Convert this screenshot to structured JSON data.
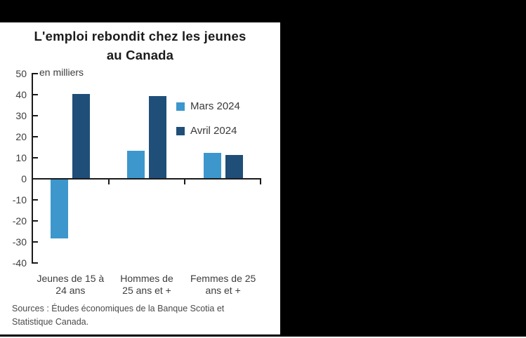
{
  "window": {
    "background_color": "#000000",
    "panel_background": "#ffffff"
  },
  "header": {
    "title_lines": [
      "L'emploi rebondit chez les jeunes",
      "au Canada"
    ],
    "title_full": "L'emploi rebondit chez les jeunes au Canada"
  },
  "chart_data": {
    "type": "bar",
    "title": "L'emploi rebondit chez les jeunes au Canada",
    "ylabel": "en milliers",
    "xlabel": "",
    "categories": [
      "Jeunes de 15 à 24 ans",
      "Hommes de 25 ans et +",
      "Femmes de 25 ans et +"
    ],
    "category_label_lines": [
      [
        "Jeunes de 15 à",
        "24 ans"
      ],
      [
        "Hommes de",
        "25 ans et +"
      ],
      [
        "Femmes de 25",
        "ans et +"
      ]
    ],
    "series": [
      {
        "name": "Mars 2024",
        "color": "#3D97CD",
        "values": [
          -28,
          13,
          12
        ]
      },
      {
        "name": "Avril 2024",
        "color": "#1F4E79",
        "values": [
          40,
          39,
          11
        ]
      }
    ],
    "ylim": [
      -40,
      50
    ],
    "yticks": [
      50,
      40,
      30,
      20,
      10,
      0,
      -10,
      -20,
      -30,
      -40
    ],
    "grid": false,
    "legend_position": "upper right",
    "axis_color": "#1a1a1a",
    "tick_label_color": "#3d3d3d"
  },
  "source": {
    "lines": [
      "Sources : Études économiques de la Banque Scotia et",
      "Statistique Canada."
    ],
    "full": "Sources : Études économiques de la Banque Scotia et Statistique Canada."
  }
}
